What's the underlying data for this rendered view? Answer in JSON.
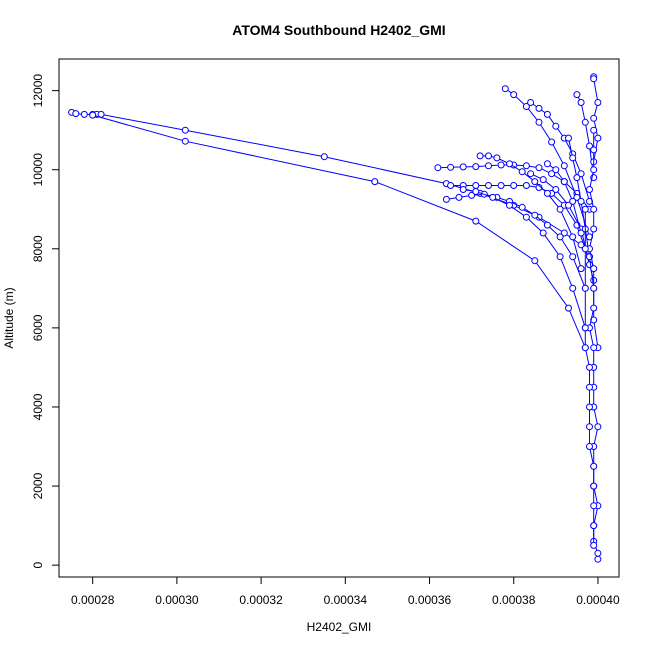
{
  "chart_data": {
    "type": "line",
    "title": "ATOM4 Southbound H2402_GMI",
    "xlabel": "H2402_GMI",
    "ylabel": "Altitude (m)",
    "xlim": [
      0.000272,
      0.000405
    ],
    "ylim": [
      -300,
      12800
    ],
    "x_ticks": [
      0.00028,
      0.0003,
      0.00032,
      0.00034,
      0.00036,
      0.00038,
      0.0004
    ],
    "x_tick_labels": [
      "0.00028",
      "0.00030",
      "0.00032",
      "0.00034",
      "0.00036",
      "0.00038",
      "0.00040"
    ],
    "y_ticks": [
      0,
      2000,
      4000,
      6000,
      8000,
      10000,
      12000
    ],
    "y_tick_labels": [
      "0",
      "2000",
      "4000",
      "6000",
      "8000",
      "10000",
      "12000"
    ],
    "grid": false,
    "legend": "none",
    "series_color": "#0000ff",
    "marker": "open-circle",
    "series": [
      {
        "x": [
          0.000275,
          0.000276,
          0.000278,
          0.00028,
          0.000281,
          0.000282,
          0.000302,
          0.000335,
          0.000364,
          0.000372,
          0.00038,
          0.000386,
          0.000392,
          0.000396,
          0.000398
        ],
        "y": [
          11450,
          11420,
          11400,
          11400,
          11400,
          11400,
          11000,
          10330,
          9650,
          9400,
          9100,
          8800,
          8400,
          8100,
          7800
        ]
      },
      {
        "x": [
          0.00028,
          0.000302,
          0.000347,
          0.000371,
          0.000385,
          0.000393,
          0.000397
        ],
        "y": [
          11380,
          10720,
          9700,
          8700,
          7700,
          6500,
          5500
        ]
      },
      {
        "x": [
          0.000362,
          0.000365,
          0.000368,
          0.000371,
          0.000374,
          0.000377,
          0.00038,
          0.000383,
          0.000386,
          0.000389,
          0.000392,
          0.000395,
          0.000398
        ],
        "y": [
          10050,
          10060,
          10070,
          10080,
          10100,
          10120,
          10120,
          10100,
          10050,
          9900,
          9700,
          9400,
          9000
        ]
      },
      {
        "x": [
          0.000365,
          0.000368,
          0.000371,
          0.000374,
          0.000377,
          0.00038,
          0.000383,
          0.000386,
          0.000389,
          0.000392,
          0.000395,
          0.000397,
          0.000399
        ],
        "y": [
          9600,
          9600,
          9600,
          9600,
          9600,
          9600,
          9600,
          9550,
          9400,
          9100,
          8600,
          8000,
          7200
        ]
      },
      {
        "x": [
          0.000364,
          0.000367,
          0.00037,
          0.000373,
          0.000376,
          0.000379,
          0.000382,
          0.000385,
          0.000388,
          0.000391,
          0.000394,
          0.000397
        ],
        "y": [
          9250,
          9300,
          9350,
          9380,
          9300,
          9200,
          9050,
          8850,
          8600,
          8300,
          7800,
          7000
        ]
      },
      {
        "x": [
          0.000372,
          0.000374,
          0.000376,
          0.000379,
          0.000382,
          0.000385,
          0.000388,
          0.000391,
          0.000394,
          0.000396
        ],
        "y": [
          10350,
          10350,
          10300,
          10150,
          9950,
          9700,
          9400,
          9000,
          8300,
          7500
        ]
      },
      {
        "x": [
          0.000378,
          0.00038,
          0.000383,
          0.000386,
          0.000389,
          0.000392,
          0.000395,
          0.000398
        ],
        "y": [
          12050,
          11900,
          11600,
          11200,
          10700,
          10100,
          9300,
          8300
        ]
      },
      {
        "x": [
          0.000384,
          0.000386,
          0.000388,
          0.00039,
          0.000392,
          0.000394,
          0.000396,
          0.000398
        ],
        "y": [
          11700,
          11550,
          11400,
          11100,
          10800,
          10400,
          9900,
          9200
        ]
      },
      {
        "x": [
          0.000395,
          0.000396,
          0.000397,
          0.000398,
          0.000399
        ],
        "y": [
          11900,
          11700,
          11200,
          10600,
          9800
        ]
      },
      {
        "x": [
          0.000399,
          0.000399,
          0.0004,
          0.000399,
          0.0004,
          0.000399
        ],
        "y": [
          12350,
          12300,
          11700,
          11300,
          10800,
          10200
        ]
      },
      {
        "x": [
          0.000384,
          0.000387,
          0.00039,
          0.000393,
          0.000396,
          0.000398
        ],
        "y": [
          9900,
          9750,
          9500,
          9100,
          8500,
          7600
        ]
      },
      {
        "x": [
          0.000368,
          0.000371,
          0.000375,
          0.000379,
          0.000383,
          0.000387,
          0.000391,
          0.000394,
          0.000397
        ],
        "y": [
          9500,
          9450,
          9300,
          9100,
          8800,
          8400,
          7800,
          7000,
          6000
        ]
      },
      {
        "x": [
          0.000388,
          0.00039,
          0.000392,
          0.000394,
          0.000396
        ],
        "y": [
          10150,
          10000,
          9700,
          9200,
          8400
        ]
      },
      {
        "x": [
          0.000393,
          0.000394,
          0.000395,
          0.000396,
          0.000397,
          0.000398,
          0.000399,
          0.000399,
          0.0004
        ],
        "y": [
          10800,
          10300,
          9800,
          9200,
          8500,
          7800,
          7000,
          6200,
          5500
        ]
      },
      {
        "x": [
          0.000399,
          0.000399,
          0.000399,
          0.000398,
          0.000399,
          0.000399,
          0.000398,
          0.000399,
          0.000399,
          0.000399,
          0.000398,
          0.000399,
          0.000399,
          0.000399,
          0.000399,
          0.0004,
          0.000399,
          0.000399,
          0.000399,
          0.0004,
          0.000399,
          0.000399,
          0.0004,
          0.0004
        ],
        "y": [
          11000,
          10500,
          10000,
          9500,
          9000,
          8500,
          8000,
          7500,
          7000,
          6500,
          6000,
          5500,
          5000,
          4500,
          4000,
          3500,
          3000,
          2500,
          2000,
          1500,
          1000,
          600,
          300,
          150
        ]
      },
      {
        "x": [
          0.000397,
          0.000397,
          0.000397,
          0.000397,
          0.000397,
          0.000398,
          0.000398,
          0.000398,
          0.000398,
          0.000398,
          0.000399,
          0.000399,
          0.000399,
          0.000399,
          0.000399
        ],
        "y": [
          9000,
          8000,
          7000,
          6000,
          5500,
          5000,
          4500,
          4000,
          3500,
          3000,
          2500,
          2000,
          1500,
          1000,
          500
        ]
      }
    ]
  }
}
